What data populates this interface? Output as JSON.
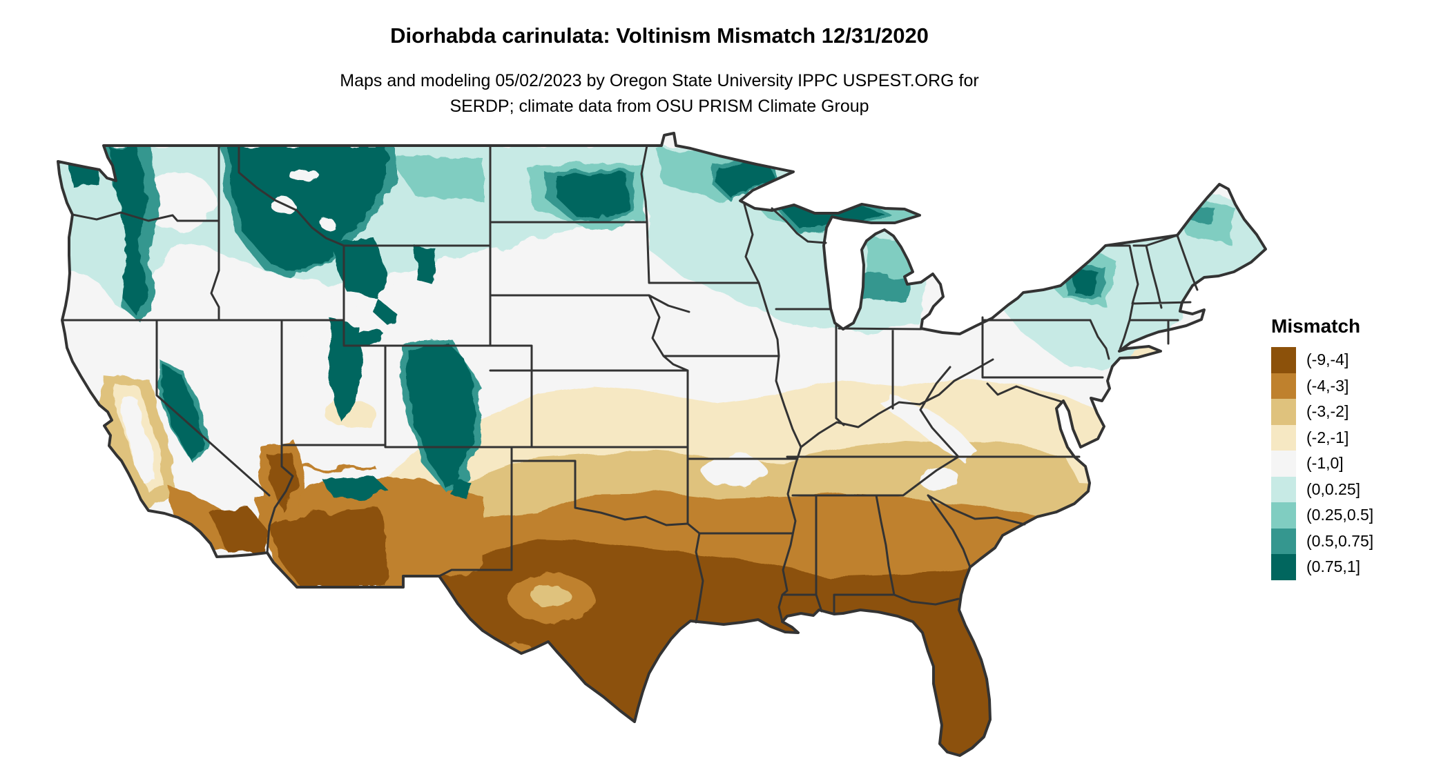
{
  "header": {
    "title": "Diorhabda carinulata: Voltinism Mismatch 12/31/2020",
    "subtitle_line1": "Maps and modeling 05/02/2023 by Oregon State University IPPC USPEST.ORG for",
    "subtitle_line2": "SERDP; climate data from OSU PRISM Climate Group"
  },
  "legend": {
    "title": "Mismatch",
    "bins": [
      {
        "label": "(-9,-4]",
        "color": "#8c510a"
      },
      {
        "label": "(-4,-3]",
        "color": "#bf812d"
      },
      {
        "label": "(-3,-2]",
        "color": "#dfc27d"
      },
      {
        "label": "(-2,-1]",
        "color": "#f6e8c3"
      },
      {
        "label": "(-1,0]",
        "color": "#f5f5f5"
      },
      {
        "label": "(0,0.25]",
        "color": "#c7eae5"
      },
      {
        "label": "(0.25,0.5]",
        "color": "#80cdc1"
      },
      {
        "label": "(0.5,0.75]",
        "color": "#35978f"
      },
      {
        "label": "(0.75,1]",
        "color": "#01665e"
      }
    ]
  },
  "map": {
    "colors": {
      "state_border": "#333333",
      "background": "#ffffff",
      "land_base": "#f5f5f5"
    }
  }
}
